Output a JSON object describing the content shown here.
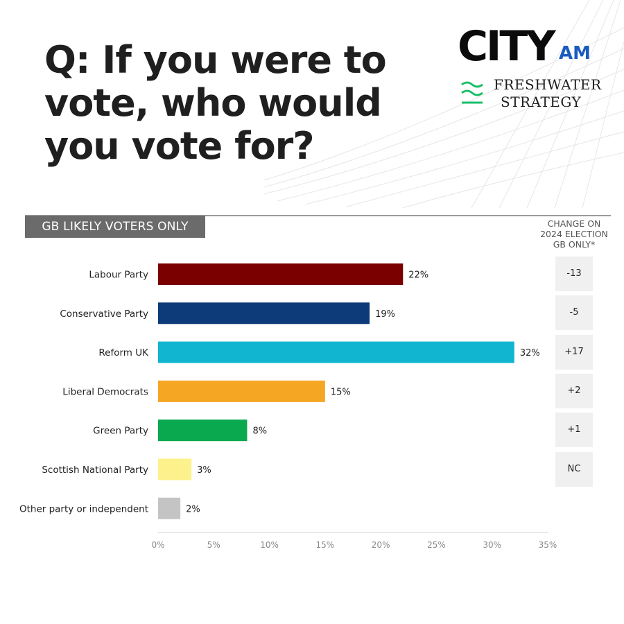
{
  "question": {
    "line1": "Q: If you were to",
    "line2": "vote, who would",
    "line3": "you vote for?"
  },
  "logos": {
    "city_text": "CITY",
    "am_text": "AM",
    "freshwater_line1": "FRESHWATER",
    "freshwater_line2": "STRATEGY"
  },
  "tag_label": "GB LIKELY VOTERS ONLY",
  "change_header": {
    "line1": "CHANGE ON",
    "line2": "2024 ELECTION",
    "line3": "GB ONLY*"
  },
  "chart_data": {
    "type": "bar",
    "orientation": "horizontal",
    "categories": [
      "Labour Party",
      "Conservative Party",
      "Reform UK",
      "Liberal Democrats",
      "Green Party",
      "Scottish National Party",
      "Other party or independent"
    ],
    "values": [
      22,
      19,
      32,
      15,
      8,
      3,
      2
    ],
    "value_labels": [
      "22%",
      "19%",
      "32%",
      "15%",
      "8%",
      "3%",
      "2%"
    ],
    "colors": [
      "#7a0000",
      "#0d3b7a",
      "#12b5d0",
      "#f5a623",
      "#0aa84f",
      "#fdf18c",
      "#c4c4c4"
    ],
    "xlim": [
      0,
      35
    ],
    "xticks": [
      0,
      5,
      10,
      15,
      20,
      25,
      30,
      35
    ],
    "xtick_labels": [
      "0%",
      "5%",
      "10%",
      "15%",
      "20%",
      "25%",
      "30%",
      "35%"
    ],
    "grid": false
  },
  "changes": [
    "-13",
    "-5",
    "+17",
    "+2",
    "+1",
    "NC"
  ]
}
